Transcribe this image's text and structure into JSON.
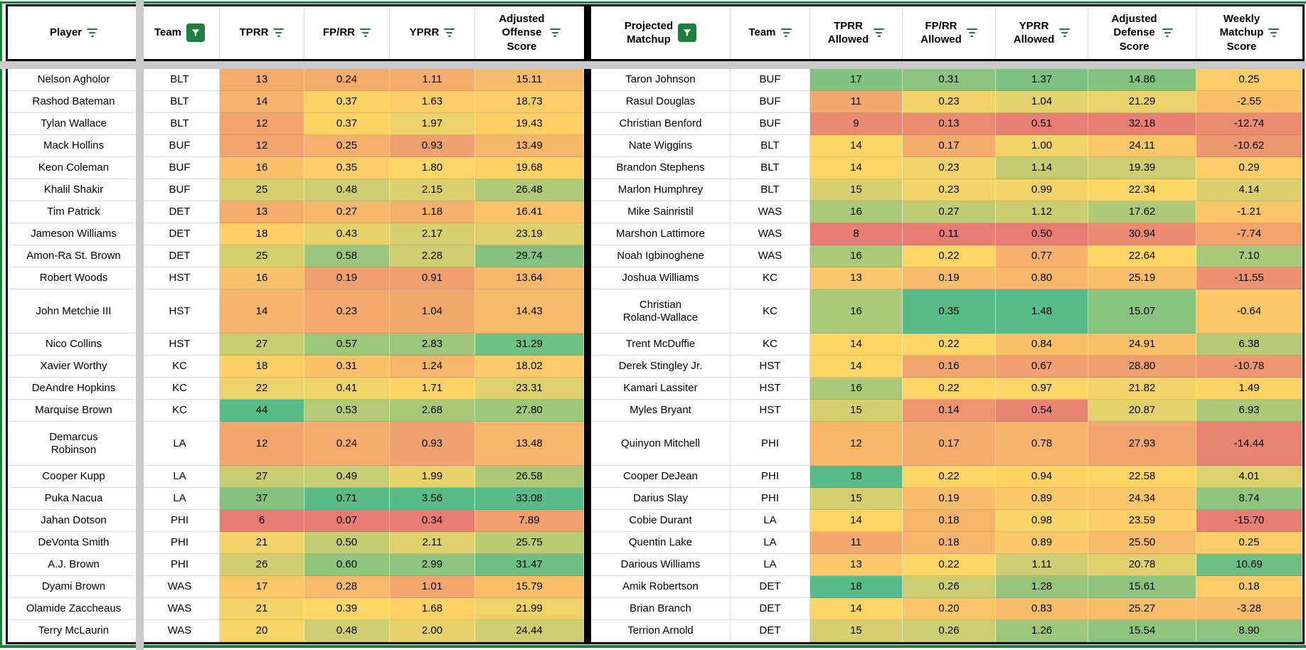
{
  "colors": {
    "gradient_min_red": "#e67c73",
    "gradient_mid_yellow": "#ffd666",
    "gradient_max_green": "#57bb8a",
    "accent_green": "#188038",
    "filter_icon_green": "#1a7f3c",
    "active_filter_bg": "#1e7e3e",
    "frozen_band_gray": "#c9c9c9",
    "border_black": "#000000"
  },
  "header": {
    "left_columns": [
      {
        "key": "player",
        "label": "Player",
        "icon": "filter-lines"
      },
      {
        "key": "team",
        "label": "Team",
        "icon": "filter-active"
      },
      {
        "key": "tprr",
        "label": "TPRR",
        "icon": "filter-lines",
        "scale": {
          "min": 6,
          "mid": 19,
          "max": 44,
          "invert": false
        }
      },
      {
        "key": "fp-rr",
        "label": "FP/RR",
        "icon": "filter-lines",
        "scale": {
          "min": 0.07,
          "mid": 0.38,
          "max": 0.71,
          "invert": false
        }
      },
      {
        "key": "yprr",
        "label": "YPRR",
        "icon": "filter-lines",
        "scale": {
          "min": 0.34,
          "mid": 1.755,
          "max": 3.56,
          "invert": false
        }
      },
      {
        "key": "adj-offense-score",
        "label": "Adjusted\nOffense\nScore",
        "icon": "filter-lines",
        "scale": {
          "min": 0,
          "mid": 20.8,
          "max": 33.1,
          "invert": false
        }
      }
    ],
    "right_columns": [
      {
        "key": "projected-matchup",
        "label": "Projected\nMatchup",
        "icon": "filter-active"
      },
      {
        "key": "team",
        "label": "Team",
        "icon": "filter-lines"
      },
      {
        "key": "tprr-allowed",
        "label": "TPRR\nAllowed",
        "icon": "filter-lines",
        "scale": {
          "min": 8,
          "mid": 14,
          "max": 18,
          "invert": false
        }
      },
      {
        "key": "fp-rr-allowed",
        "label": "FP/RR\nAllowed",
        "icon": "filter-lines",
        "scale": {
          "min": 0.11,
          "mid": 0.22,
          "max": 0.35,
          "invert": false
        }
      },
      {
        "key": "yprr-allowed",
        "label": "YPRR\nAllowed",
        "icon": "filter-lines",
        "scale": {
          "min": 0.5,
          "mid": 0.955,
          "max": 1.48,
          "invert": false
        }
      },
      {
        "key": "adj-defense-score",
        "label": "Adjusted\nDefense\nScore",
        "icon": "filter-lines",
        "scale": {
          "min": 12,
          "mid": 22.6,
          "max": 32.5,
          "invert": true
        }
      },
      {
        "key": "weekly-matchup-score",
        "label": "Weekly\nMatchup\nScore",
        "icon": "filter-lines",
        "scale": {
          "min": -16,
          "mid": 2,
          "max": 12,
          "invert": false
        }
      }
    ]
  },
  "tall_rows": [
    10,
    15
  ],
  "rows_left": [
    [
      "Nelson Agholor",
      "BLT",
      "13",
      "0.24",
      "1.11",
      "15.11"
    ],
    [
      "Rashod Bateman",
      "BLT",
      "14",
      "0.37",
      "1.63",
      "18.73"
    ],
    [
      "Tylan Wallace",
      "BLT",
      "12",
      "0.37",
      "1.97",
      "19.43"
    ],
    [
      "Mack Hollins",
      "BUF",
      "12",
      "0.25",
      "0.93",
      "13.49"
    ],
    [
      "Keon Coleman",
      "BUF",
      "16",
      "0.35",
      "1.80",
      "19.68"
    ],
    [
      "Khalil Shakir",
      "BUF",
      "25",
      "0.48",
      "2.15",
      "26.48"
    ],
    [
      "Tim Patrick",
      "DET",
      "13",
      "0.27",
      "1.18",
      "16.41"
    ],
    [
      "Jameson Williams",
      "DET",
      "18",
      "0.43",
      "2.17",
      "23.19"
    ],
    [
      "Amon-Ra St. Brown",
      "DET",
      "25",
      "0.58",
      "2.28",
      "29.74"
    ],
    [
      "Robert Woods",
      "HST",
      "16",
      "0.19",
      "0.91",
      "13.64"
    ],
    [
      "John Metchie III",
      "HST",
      "14",
      "0.23",
      "1.04",
      "14.43"
    ],
    [
      "Nico Collins",
      "HST",
      "27",
      "0.57",
      "2.83",
      "31.29"
    ],
    [
      "Xavier Worthy",
      "KC",
      "18",
      "0.31",
      "1.24",
      "18.02"
    ],
    [
      "DeAndre Hopkins",
      "KC",
      "22",
      "0.41",
      "1.71",
      "23.31"
    ],
    [
      "Marquise Brown",
      "KC",
      "44",
      "0.53",
      "2.68",
      "27.80"
    ],
    [
      "Demarcus\nRobinson",
      "LA",
      "12",
      "0.24",
      "0.93",
      "13.48"
    ],
    [
      "Cooper Kupp",
      "LA",
      "27",
      "0.49",
      "1.99",
      "26.58"
    ],
    [
      "Puka Nacua",
      "LA",
      "37",
      "0.71",
      "3.56",
      "33.08"
    ],
    [
      "Jahan Dotson",
      "PHI",
      "6",
      "0.07",
      "0.34",
      "7.89"
    ],
    [
      "DeVonta Smith",
      "PHI",
      "21",
      "0.50",
      "2.11",
      "25.75"
    ],
    [
      "A.J. Brown",
      "PHI",
      "26",
      "0.60",
      "2.99",
      "31.47"
    ],
    [
      "Dyami Brown",
      "WAS",
      "17",
      "0.28",
      "1.01",
      "15.79"
    ],
    [
      "Olamide Zaccheaus",
      "WAS",
      "21",
      "0.39",
      "1.68",
      "21.99"
    ],
    [
      "Terry McLaurin",
      "WAS",
      "20",
      "0.48",
      "2.00",
      "24.44"
    ]
  ],
  "rows_right": [
    [
      "Taron Johnson",
      "BUF",
      "17",
      "0.31",
      "1.37",
      "14.86",
      "0.25"
    ],
    [
      "Rasul Douglas",
      "BUF",
      "11",
      "0.23",
      "1.04",
      "21.29",
      "-2.55"
    ],
    [
      "Christian Benford",
      "BUF",
      "9",
      "0.13",
      "0.51",
      "32.18",
      "-12.74"
    ],
    [
      "Nate Wiggins",
      "BLT",
      "14",
      "0.17",
      "1.00",
      "24.11",
      "-10.62"
    ],
    [
      "Brandon Stephens",
      "BLT",
      "14",
      "0.23",
      "1.14",
      "19.39",
      "0.29"
    ],
    [
      "Marlon Humphrey",
      "BLT",
      "15",
      "0.23",
      "0.99",
      "22.34",
      "4.14"
    ],
    [
      "Mike Sainristil",
      "WAS",
      "16",
      "0.27",
      "1.12",
      "17.62",
      "-1.21"
    ],
    [
      "Marshon Lattimore",
      "WAS",
      "8",
      "0.11",
      "0.50",
      "30.94",
      "-7.74"
    ],
    [
      "Noah Igbinoghene",
      "WAS",
      "16",
      "0.22",
      "0.77",
      "22.64",
      "7.10"
    ],
    [
      "Joshua Williams",
      "KC",
      "13",
      "0.19",
      "0.80",
      "25.19",
      "-11.55"
    ],
    [
      "Christian\nRoland-Wallace",
      "KC",
      "16",
      "0.35",
      "1.48",
      "15.07",
      "-0.64"
    ],
    [
      "Trent McDuffie",
      "KC",
      "14",
      "0.22",
      "0.84",
      "24.91",
      "6.38"
    ],
    [
      "Derek Stingley Jr.",
      "HST",
      "14",
      "0.16",
      "0.67",
      "28.80",
      "-10.78"
    ],
    [
      "Kamari Lassiter",
      "HST",
      "16",
      "0.22",
      "0.97",
      "21.82",
      "1.49"
    ],
    [
      "Myles Bryant",
      "HST",
      "15",
      "0.14",
      "0.54",
      "20.87",
      "6.93"
    ],
    [
      "Quinyon Mitchell",
      "PHI",
      "12",
      "0.17",
      "0.78",
      "27.93",
      "-14.44"
    ],
    [
      "Cooper DeJean",
      "PHI",
      "18",
      "0.22",
      "0.94",
      "22.58",
      "4.01"
    ],
    [
      "Darius Slay",
      "PHI",
      "15",
      "0.19",
      "0.89",
      "24.34",
      "8.74"
    ],
    [
      "Cobie Durant",
      "LA",
      "14",
      "0.18",
      "0.98",
      "23.59",
      "-15.70"
    ],
    [
      "Quentin Lake",
      "LA",
      "11",
      "0.18",
      "0.89",
      "25.50",
      "0.25"
    ],
    [
      "Darious Williams",
      "LA",
      "13",
      "0.22",
      "1.11",
      "20.78",
      "10.69"
    ],
    [
      "Amik Robertson",
      "DET",
      "18",
      "0.26",
      "1.28",
      "15.61",
      "0.18"
    ],
    [
      "Brian Branch",
      "DET",
      "14",
      "0.20",
      "0.83",
      "25.27",
      "-3.28"
    ],
    [
      "Terrion Arnold",
      "DET",
      "15",
      "0.26",
      "1.26",
      "15.54",
      "8.90"
    ]
  ]
}
